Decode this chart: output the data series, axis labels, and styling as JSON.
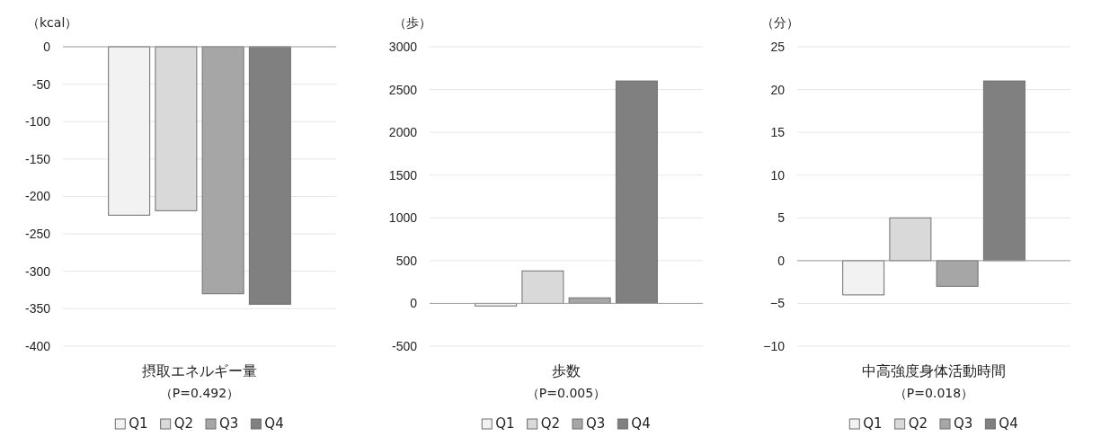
{
  "chart_data": [
    {
      "type": "bar",
      "ylabel": "（kcal）",
      "xlabel": "摂取エネルギー量",
      "annotations": [
        "（P=0.492）"
      ],
      "categories": [
        null
      ],
      "series": [
        {
          "name": "Q1",
          "color": "#f2f2f2",
          "values": [
            -225
          ]
        },
        {
          "name": "Q2",
          "color": "#d9d9d9",
          "values": [
            -219
          ]
        },
        {
          "name": "Q3",
          "color": "#a6a6a6",
          "values": [
            -330
          ]
        },
        {
          "name": "Q4",
          "color": "#808080",
          "values": [
            -344
          ]
        }
      ],
      "ylim": [
        -400,
        0
      ],
      "yticks": [
        -400,
        -350,
        -300,
        -250,
        -200,
        -150,
        -100,
        -50,
        0
      ],
      "grid": "y",
      "legend": "bottom"
    },
    {
      "type": "bar",
      "ylabel": "（歩）",
      "xlabel": "歩数",
      "annotations": [
        "（P=0.005）"
      ],
      "categories": [
        null
      ],
      "series": [
        {
          "name": "Q1",
          "color": "#f2f2f2",
          "values": [
            -30
          ]
        },
        {
          "name": "Q2",
          "color": "#d9d9d9",
          "values": [
            380
          ]
        },
        {
          "name": "Q3",
          "color": "#a6a6a6",
          "values": [
            65
          ]
        },
        {
          "name": "Q4",
          "color": "#808080",
          "values": [
            2600
          ]
        }
      ],
      "ylim": [
        -500,
        3000
      ],
      "yticks": [
        -500,
        0,
        500,
        1000,
        1500,
        2000,
        2500,
        3000
      ],
      "grid": "y",
      "legend": "bottom"
    },
    {
      "type": "bar",
      "ylabel": "（分）",
      "xlabel": "中高強度身体活動時間",
      "annotations": [
        "（P=0.018）"
      ],
      "categories": [
        null
      ],
      "series": [
        {
          "name": "Q1",
          "color": "#f2f2f2",
          "values": [
            -4
          ]
        },
        {
          "name": "Q2",
          "color": "#d9d9d9",
          "values": [
            5
          ]
        },
        {
          "name": "Q3",
          "color": "#a6a6a6",
          "values": [
            -3
          ]
        },
        {
          "name": "Q4",
          "color": "#808080",
          "values": [
            21
          ]
        }
      ],
      "ylim": [
        -10,
        25
      ],
      "yticks": [
        {
          "value": -10,
          "label": "−10"
        },
        {
          "value": -5,
          "label": "−5"
        },
        0,
        5,
        10,
        15,
        20,
        25
      ],
      "grid": "y",
      "legend": "bottom"
    }
  ]
}
